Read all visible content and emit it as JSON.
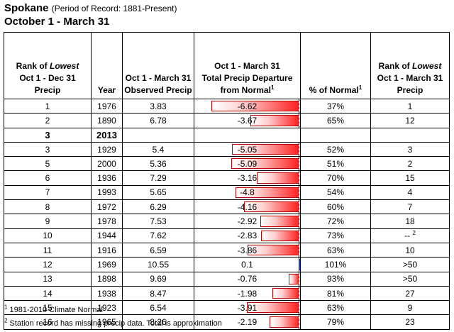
{
  "header": {
    "city": "Spokane",
    "period": "(Period of Record: 1881-Present)",
    "subtitle": "October 1 - March 31"
  },
  "columns": {
    "rank_dec_a": "Rank of ",
    "rank_dec_b": "Lowest",
    "rank_dec_c": "Oct 1 - Dec 31",
    "rank_dec_d": "Precip",
    "year": "Year",
    "obs_a": "Oct 1 - March 31",
    "obs_b": "Observed Precip",
    "dep_a": "Oct 1 - March 31",
    "dep_b": "Total Precip Departure",
    "dep_c": "from Normal",
    "dep_sup": "1",
    "pct": "% of Normal",
    "pct_sup": "1",
    "rank_mar_a": "Rank of ",
    "rank_mar_b": "Lowest",
    "rank_mar_c": "Oct 1 - March 31",
    "rank_mar_d": "Precip"
  },
  "rows": [
    {
      "rank_dec": "1",
      "year": "1976",
      "observed": "3.83",
      "departure": "-6.62",
      "dep_value": -6.62,
      "pct": "37%",
      "rank_mar": "1",
      "rank_sup": ""
    },
    {
      "rank_dec": "2",
      "year": "1890",
      "observed": "6.78",
      "departure": "-3.67",
      "dep_value": -3.67,
      "pct": "65%",
      "rank_mar": "12",
      "rank_sup": ""
    },
    {
      "rank_dec": "3",
      "year": "2013",
      "observed": "",
      "departure": "",
      "dep_value": null,
      "pct": "",
      "rank_mar": "",
      "rank_sup": "",
      "bold": true
    },
    {
      "rank_dec": "3",
      "year": "1929",
      "observed": "5.4",
      "departure": "-5.05",
      "dep_value": -5.05,
      "pct": "52%",
      "rank_mar": "3",
      "rank_sup": ""
    },
    {
      "rank_dec": "5",
      "year": "2000",
      "observed": "5.36",
      "departure": "-5.09",
      "dep_value": -5.09,
      "pct": "51%",
      "rank_mar": "2",
      "rank_sup": ""
    },
    {
      "rank_dec": "6",
      "year": "1936",
      "observed": "7.29",
      "departure": "-3.16",
      "dep_value": -3.16,
      "pct": "70%",
      "rank_mar": "15",
      "rank_sup": ""
    },
    {
      "rank_dec": "7",
      "year": "1993",
      "observed": "5.65",
      "departure": "-4.8",
      "dep_value": -4.8,
      "pct": "54%",
      "rank_mar": "4",
      "rank_sup": ""
    },
    {
      "rank_dec": "8",
      "year": "1972",
      "observed": "6.29",
      "departure": "-4.16",
      "dep_value": -4.16,
      "pct": "60%",
      "rank_mar": "7",
      "rank_sup": ""
    },
    {
      "rank_dec": "9",
      "year": "1978",
      "observed": "7.53",
      "departure": "-2.92",
      "dep_value": -2.92,
      "pct": "72%",
      "rank_mar": "18",
      "rank_sup": ""
    },
    {
      "rank_dec": "10",
      "year": "1944",
      "observed": "7.62",
      "departure": "-2.83",
      "dep_value": -2.83,
      "pct": "73%",
      "rank_mar": "--",
      "rank_sup": "2"
    },
    {
      "rank_dec": "11",
      "year": "1916",
      "observed": "6.59",
      "departure": "-3.86",
      "dep_value": -3.86,
      "pct": "63%",
      "rank_mar": "10",
      "rank_sup": ""
    },
    {
      "rank_dec": "12",
      "year": "1969",
      "observed": "10.55",
      "departure": "0.1",
      "dep_value": 0.1,
      "pct": "101%",
      "rank_mar": ">50",
      "rank_sup": ""
    },
    {
      "rank_dec": "13",
      "year": "1898",
      "observed": "9.69",
      "departure": "-0.76",
      "dep_value": -0.76,
      "pct": "93%",
      "rank_mar": ">50",
      "rank_sup": ""
    },
    {
      "rank_dec": "14",
      "year": "1938",
      "observed": "8.47",
      "departure": "-1.98",
      "dep_value": -1.98,
      "pct": "81%",
      "rank_mar": "27",
      "rank_sup": ""
    },
    {
      "rank_dec": "15",
      "year": "1923",
      "observed": "6.54",
      "departure": "-3.91",
      "dep_value": -3.91,
      "pct": "63%",
      "rank_mar": "9",
      "rank_sup": ""
    },
    {
      "rank_dec": "16",
      "year": "1965",
      "observed": "8.26",
      "departure": "-2.19",
      "dep_value": -2.19,
      "pct": "79%",
      "rank_mar": "23",
      "rank_sup": ""
    }
  ],
  "footnotes": {
    "fn1_sup": "1",
    "fn1": "1981-2010 Climate Normal",
    "fn2_sup": "2",
    "fn2": "Station record has missing precip data. Total is approximation"
  },
  "colors": {
    "negative_bar": "#ff2020",
    "positive_bar": "#1f3fbf"
  }
}
